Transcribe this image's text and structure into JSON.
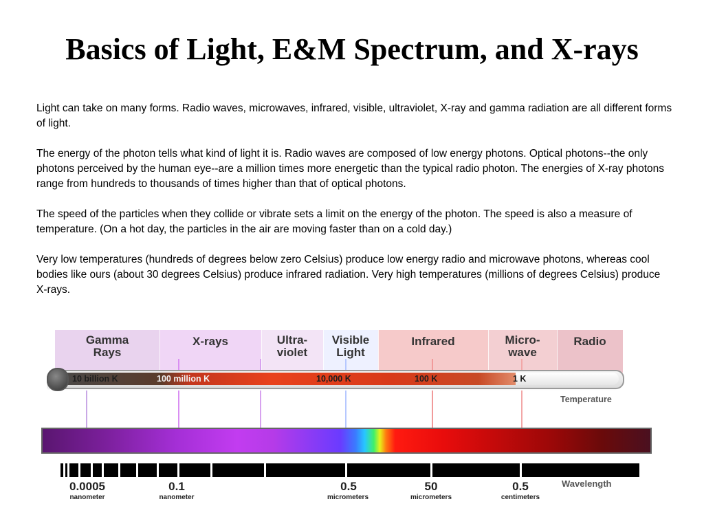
{
  "title": "Basics of Light, E&M Spectrum, and X-rays",
  "paragraphs": [
    " Light can take on many forms. Radio waves, microwaves, infrared, visible, ultraviolet, X-ray and gamma radiation are all different forms of light.",
    "The energy of the photon tells what kind of light it is. Radio waves are composed of low energy photons. Optical photons--the only photons perceived by the human eye--are a million times more energetic than the typical radio photon. The energies of X-ray photons range from hundreds to thousands of times higher than that of optical photons.",
    "The speed of the particles when they collide or vibrate sets a limit on the energy of the photon. The speed is also a measure of temperature. (On a hot day, the particles in the air are moving faster than on a cold day.)",
    "Very low temperatures (hundreds of degrees below zero Celsius) produce low energy radio and microwave photons, whereas cool bodies like ours (about 30 degrees Celsius) produce infrared radiation. Very high temperatures (millions of degrees Celsius) produce X-rays."
  ],
  "diagram": {
    "bands": [
      {
        "label": "Gamma\nRays",
        "color": "#e9d3ee"
      },
      {
        "label": "X-rays",
        "color": "#f0d6f6"
      },
      {
        "label": "Ultra-\nviolet",
        "color": "#f3e4f6"
      },
      {
        "label": "Visible\nLight",
        "color": "#eef1ff"
      },
      {
        "label": "Infrared",
        "color": "#f6caca"
      },
      {
        "label": "Micro-\nwave",
        "color": "#f3cfd2"
      },
      {
        "label": "Radio",
        "color": "#ecc2c9"
      }
    ],
    "temperatures": [
      "10 billion K",
      "100 million K",
      "10,000 K",
      "100 K",
      "1 K"
    ],
    "temperature_caption": "Temperature",
    "wavelengths": [
      {
        "value": "0.0005",
        "unit": "nanometer"
      },
      {
        "value": "0.1",
        "unit": "nanometer"
      },
      {
        "value": "0.5",
        "unit": "micrometers"
      },
      {
        "value": "50",
        "unit": "micrometers"
      },
      {
        "value": "0.5",
        "unit": "centimeters"
      }
    ],
    "wavelength_caption": "Wavelength",
    "colors": {
      "gamma_line": "#c9a8e6",
      "xray_line": "#d98ef2",
      "uv_line": "#d7a2ef",
      "visible_line": "#b6c8ff",
      "ir_line": "#f19a9a",
      "micro_line": "#f2a7a7"
    }
  }
}
